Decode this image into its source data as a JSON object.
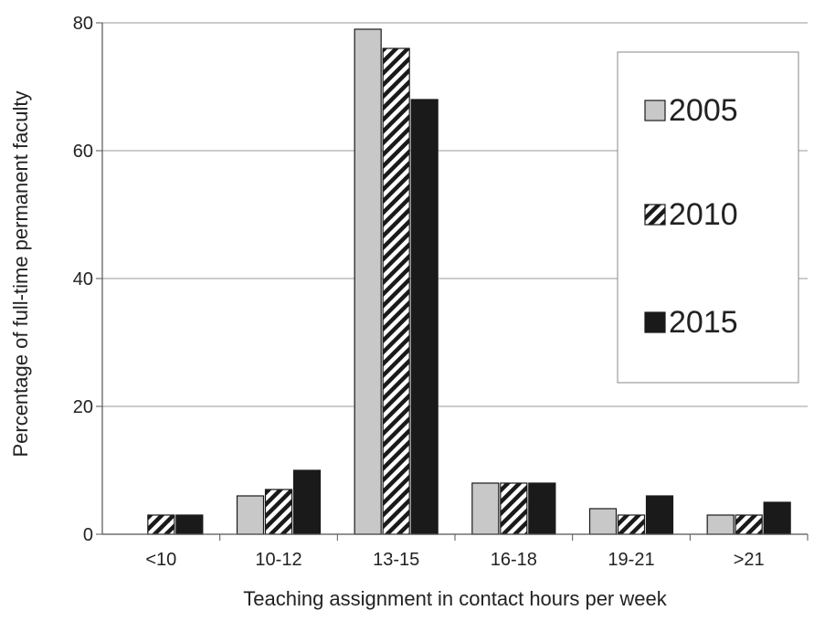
{
  "chart_data": {
    "type": "bar",
    "title": "",
    "xlabel": "Teaching assignment in contact hours per week",
    "ylabel": "Percentage of full-time permanent faculty",
    "categories": [
      "<10",
      "10-12",
      "13-15",
      "16-18",
      "19-21",
      ">21"
    ],
    "series": [
      {
        "name": "2005",
        "values": [
          0,
          6,
          79,
          8,
          4,
          3
        ],
        "fill": "#c8c8c8",
        "pattern": "solid"
      },
      {
        "name": "2010",
        "values": [
          3,
          7,
          76,
          8,
          3,
          3
        ],
        "fill": "#ffffff",
        "pattern": "diagonal-stripes"
      },
      {
        "name": "2015",
        "values": [
          3,
          10,
          68,
          8,
          6,
          5
        ],
        "fill": "#1a1a1a",
        "pattern": "solid"
      }
    ],
    "yticks": [
      "0",
      "20",
      "40",
      "60",
      "80"
    ],
    "ylim": [
      0,
      80
    ],
    "grid": true,
    "legend_position": "top-right"
  }
}
